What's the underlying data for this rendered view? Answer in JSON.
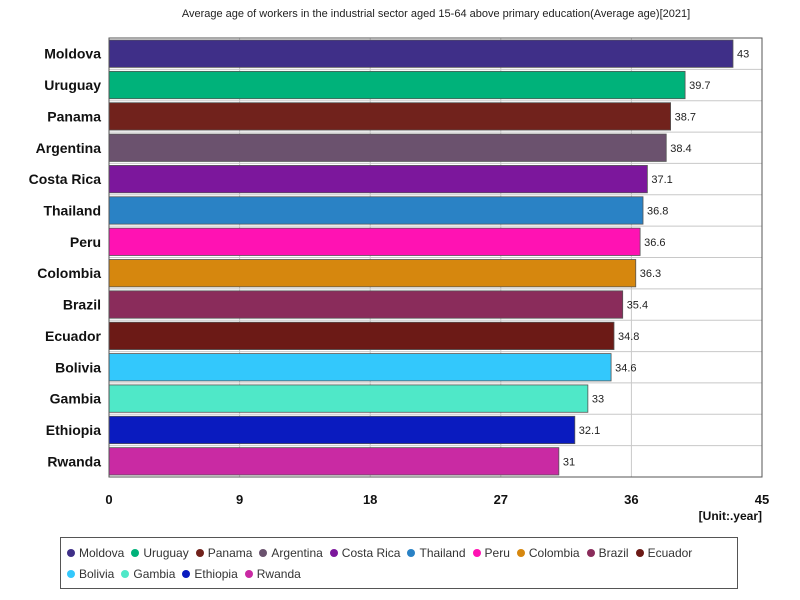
{
  "chart_data": {
    "type": "bar",
    "orientation": "horizontal",
    "title": "Average age of workers in the industrial sector aged 15-64 above primary education(Average age)[2021]",
    "categories": [
      "Moldova",
      "Uruguay",
      "Panama",
      "Argentina",
      "Costa Rica",
      "Thailand",
      "Peru",
      "Colombia",
      "Brazil",
      "Ecuador",
      "Bolivia",
      "Gambia",
      "Ethiopia",
      "Rwanda"
    ],
    "values": [
      43,
      39.7,
      38.7,
      38.4,
      37.1,
      36.8,
      36.6,
      36.3,
      35.4,
      34.8,
      34.6,
      33,
      32.1,
      31
    ],
    "value_labels": [
      "43",
      "39.7",
      "38.7",
      "38.4",
      "37.1",
      "36.8",
      "36.6",
      "36.3",
      "35.4",
      "34.8",
      "34.6",
      "33",
      "32.1",
      "31"
    ],
    "colors": [
      "#3f2f88",
      "#00b27a",
      "#71221c",
      "#6b526e",
      "#7c179c",
      "#2a82c5",
      "#ff12b3",
      "#d6870e",
      "#8a2c5b",
      "#6c1a16",
      "#33c8fc",
      "#4fe8c8",
      "#0a1bbf",
      "#c92aa3"
    ],
    "x_ticks": [
      "0",
      "9",
      "18",
      "27",
      "36",
      "45"
    ],
    "xlim": [
      0,
      45
    ],
    "grid": true,
    "legend_position": "bottom",
    "unit_label": "[Unit:.year]"
  }
}
